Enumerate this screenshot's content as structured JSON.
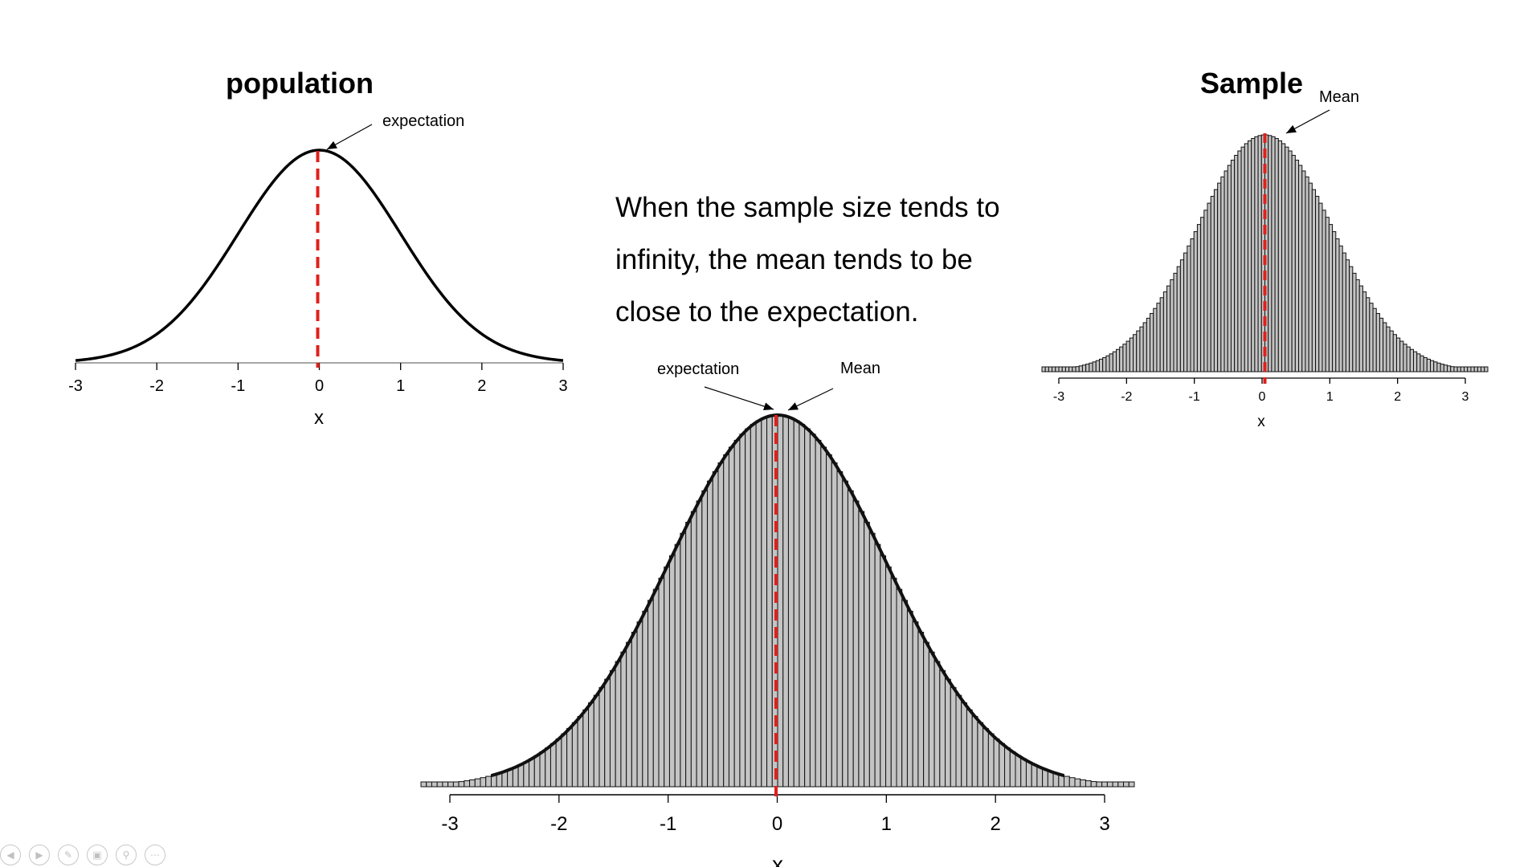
{
  "slide": {
    "text_lines": [
      "When the sample size tends to",
      "infinity, the mean tends to be",
      "close to the expectation."
    ]
  },
  "chart_data": [
    {
      "id": "population",
      "type": "line",
      "title": "population",
      "xlabel": "x",
      "ylabel": "",
      "xlim": [
        -3,
        3
      ],
      "xticks": [
        "-3",
        "-2",
        "-1",
        "0",
        "1",
        "2",
        "3"
      ],
      "curve": "standard normal density",
      "series": [
        {
          "x": [
            -3.0,
            -2.5,
            -2.0,
            -1.5,
            -1.0,
            -0.5,
            0.0,
            0.5,
            1.0,
            1.5,
            2.0,
            2.5,
            3.0
          ],
          "values": [
            0.0044,
            0.0175,
            0.054,
            0.1295,
            0.242,
            0.3521,
            0.3989,
            0.3521,
            0.242,
            0.1295,
            0.054,
            0.0175,
            0.0044
          ]
        }
      ],
      "reference_line": {
        "x": 0,
        "color": "#e0201b",
        "style": "dashed"
      },
      "annotations": [
        {
          "text": "expectation",
          "x": 0
        }
      ],
      "grid": false
    },
    {
      "id": "sample",
      "type": "bar",
      "title": "Sample",
      "xlabel": "x",
      "ylabel": "",
      "xlim": [
        -3.3,
        3.3
      ],
      "xticks": [
        "-3",
        "-2",
        "-1",
        "0",
        "1",
        "2",
        "3"
      ],
      "bin_width": 0.05,
      "bar_color": "#c4c4c4",
      "distribution": "approximately standard normal",
      "reference_line": {
        "x": 0,
        "color": "#e0201b",
        "style": "dashed"
      },
      "annotations": [
        {
          "text": "Mean",
          "x": 0
        }
      ],
      "grid": false
    },
    {
      "id": "combined",
      "type": "bar",
      "title": "",
      "xlabel": "x",
      "ylabel": "",
      "xlim": [
        -3.3,
        3.3
      ],
      "xticks": [
        "-3",
        "-2",
        "-1",
        "0",
        "1",
        "2",
        "3"
      ],
      "bin_width": 0.05,
      "bar_color": "#c4c4c4",
      "distribution": "approximately standard normal",
      "overlay_curve": "standard normal density",
      "reference_line": {
        "x": 0,
        "color": "#e0201b",
        "style": "dashed"
      },
      "annotations": [
        {
          "text": "expectation",
          "x": 0
        },
        {
          "text": "Mean",
          "x": 0
        }
      ],
      "grid": false
    }
  ],
  "toolbar": {
    "icons": [
      "previous-icon",
      "next-icon",
      "pen-icon",
      "slides-icon",
      "zoom-icon",
      "more-icon"
    ]
  }
}
